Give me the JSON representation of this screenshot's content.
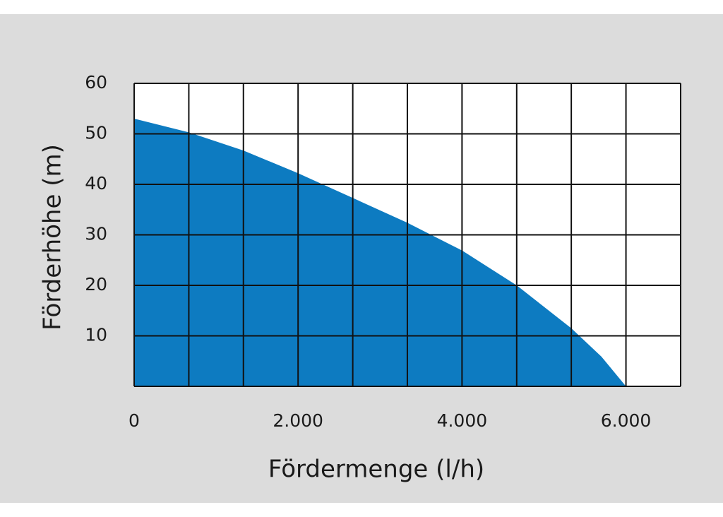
{
  "chart_data": {
    "type": "area",
    "x_label": "Fördermenge (l/h)",
    "y_label": "Förderhöhe (m)",
    "x": [
      0,
      667,
      1333,
      2000,
      2667,
      3333,
      4000,
      4667,
      5333,
      5700,
      6000
    ],
    "values": [
      53,
      50.3,
      46.7,
      42.2,
      37.3,
      32.4,
      26.9,
      20,
      11.5,
      5.9,
      0
    ],
    "color": "#0d7bc1",
    "xlim": [
      0,
      6667
    ],
    "ylim": [
      0,
      60
    ],
    "xticks": [
      {
        "value": 0,
        "label": "0"
      },
      {
        "value": 2000,
        "label": "2.000"
      },
      {
        "value": 4000,
        "label": "4.000"
      },
      {
        "value": 6000,
        "label": "6.000"
      }
    ],
    "yticks": [
      10,
      20,
      30,
      40,
      50,
      60
    ],
    "xgrid": [
      0,
      667,
      1333,
      2000,
      2667,
      3333,
      4000,
      4667,
      5333,
      6000,
      6667
    ],
    "grid": true
  }
}
